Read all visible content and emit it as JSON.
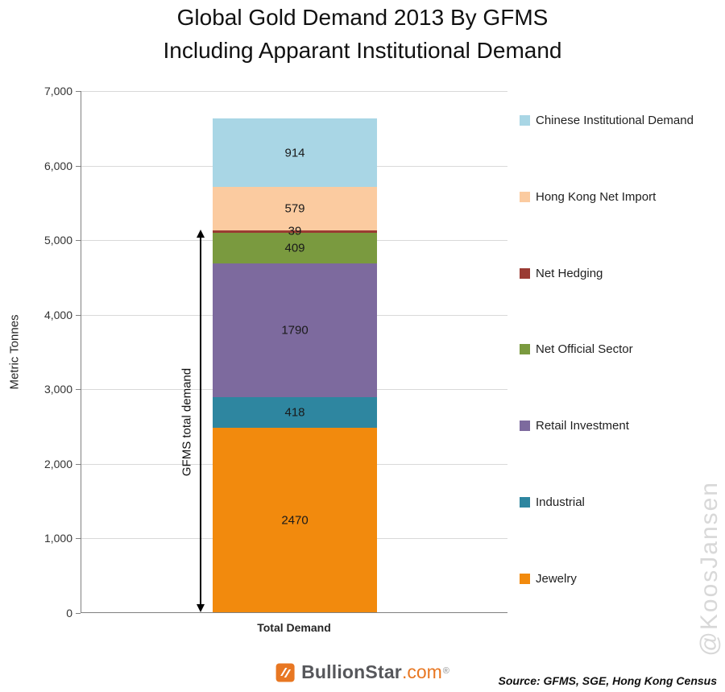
{
  "title": {
    "line1": "Global Gold Demand 2013 By GFMS",
    "line2": "Including Apparant Institutional Demand"
  },
  "chart_data": {
    "type": "bar",
    "stacked": true,
    "title": "Global Gold Demand 2013 By GFMS Including Apparant Institutional Demand",
    "categories": [
      "Total Demand"
    ],
    "series": [
      {
        "name": "Jewelry",
        "value": 2470,
        "color": "#F28A0D"
      },
      {
        "name": "Industrial",
        "value": 418,
        "color": "#2E86A0"
      },
      {
        "name": "Retail Investment",
        "value": 1790,
        "color": "#7D6A9E"
      },
      {
        "name": "Net Official Sector",
        "value": 409,
        "color": "#7A9A3F"
      },
      {
        "name": "Net Hedging",
        "value": 39,
        "color": "#9A3B33"
      },
      {
        "name": "Hong Kong Net Import",
        "value": 579,
        "color": "#FBCBA0"
      },
      {
        "name": "Chinese Institutional Demand",
        "value": 914,
        "color": "#A9D6E5"
      }
    ],
    "ylabel": "Metric Tonnes",
    "xlabel": "Total Demand",
    "ylim": [
      0,
      7000
    ],
    "ytick_interval": 1000,
    "ytick_labels": [
      "0",
      "1,000",
      "2,000",
      "3,000",
      "4,000",
      "5,000",
      "6,000",
      "7,000"
    ],
    "grid": "horizontal",
    "legend_position": "right",
    "legend_order": [
      "Chinese Institutional Demand",
      "Hong Kong Net Import",
      "Net Hedging",
      "Net Official Sector",
      "Retail Investment",
      "Industrial",
      "Jewelry"
    ],
    "annotation": {
      "label": "GFMS total demand",
      "from": 0,
      "to": 5126
    }
  },
  "footer": {
    "logo_main": "BullionStar",
    "logo_suffix": ".com",
    "logo_reg": "®",
    "source": "Source: GFMS, SGE, Hong Kong Census"
  },
  "watermark": "@KoosJansen"
}
